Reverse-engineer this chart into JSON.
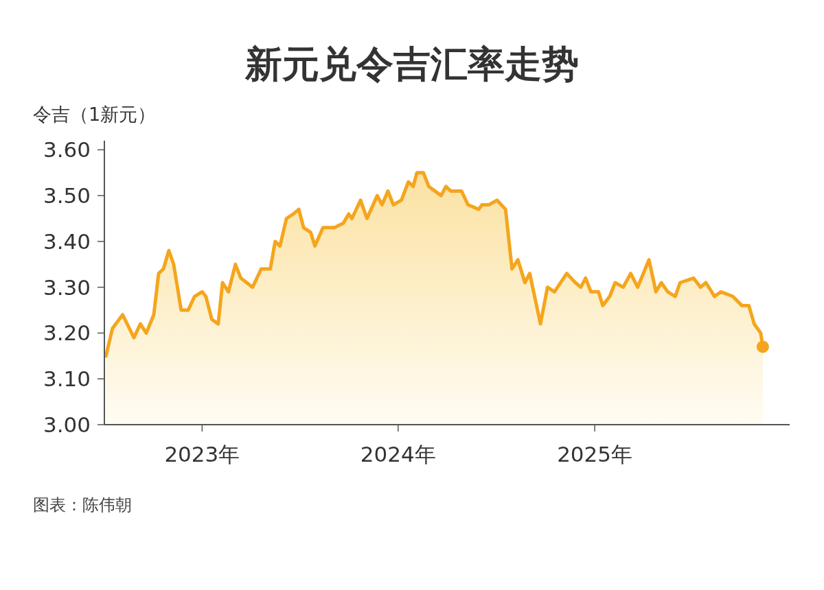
{
  "chart_data": {
    "type": "area",
    "title": "新元兑令吉汇率走势",
    "ylabel": "令吉（1新元）",
    "xlim": [
      "2022-07-03",
      "2025-12-30"
    ],
    "ylim": [
      3.0,
      3.62
    ],
    "xticks": [
      {
        "value": "2023-01-01",
        "label": "2023年"
      },
      {
        "value": "2024-01-01",
        "label": "2024年"
      },
      {
        "value": "2025-01-01",
        "label": "2025年"
      }
    ],
    "yticks": [
      {
        "value": 3.0,
        "label": "3.00"
      },
      {
        "value": 3.1,
        "label": "3.10"
      },
      {
        "value": 3.2,
        "label": "3.20"
      },
      {
        "value": 3.3,
        "label": "3.30"
      },
      {
        "value": 3.4,
        "label": "3.40"
      },
      {
        "value": 3.5,
        "label": "3.50"
      },
      {
        "value": 3.6,
        "label": "3.60"
      }
    ],
    "annotations": [
      "图表：陈伟朝"
    ],
    "series": [
      {
        "color": "#f5a51d",
        "x": [
          "2022-07-06",
          "2022-07-18",
          "2022-08-06",
          "2022-08-27",
          "2022-09-08",
          "2022-09-19",
          "2022-10-03",
          "2022-10-12",
          "2022-10-21",
          "2022-10-31",
          "2022-11-09",
          "2022-11-23",
          "2022-12-06",
          "2022-12-18",
          "2023-01-01",
          "2023-01-08",
          "2023-01-19",
          "2023-01-31",
          "2023-02-08",
          "2023-02-19",
          "2023-03-04",
          "2023-03-14",
          "2023-04-05",
          "2023-04-21",
          "2023-05-08",
          "2023-05-17",
          "2023-05-26",
          "2023-06-07",
          "2023-06-20",
          "2023-06-30",
          "2023-07-09",
          "2023-07-22",
          "2023-07-30",
          "2023-08-14",
          "2023-08-23",
          "2023-09-04",
          "2023-09-21",
          "2023-10-01",
          "2023-10-07",
          "2023-10-23",
          "2023-11-04",
          "2023-11-23",
          "2023-12-02",
          "2023-12-13",
          "2023-12-23",
          "2024-01-07",
          "2024-01-20",
          "2024-01-29",
          "2024-02-05",
          "2024-02-17",
          "2024-02-27",
          "2024-03-21",
          "2024-03-30",
          "2024-04-08",
          "2024-04-28",
          "2024-05-10",
          "2024-05-30",
          "2024-06-05",
          "2024-06-18",
          "2024-07-03",
          "2024-07-19",
          "2024-07-31",
          "2024-08-11",
          "2024-08-24",
          "2024-09-02",
          "2024-09-22",
          "2024-10-05",
          "2024-10-18",
          "2024-11-10",
          "2024-11-26",
          "2024-12-06",
          "2024-12-15",
          "2024-12-25",
          "2025-01-08",
          "2025-01-16",
          "2025-01-29",
          "2025-02-08",
          "2025-02-23",
          "2025-03-09",
          "2025-03-22",
          "2025-04-12",
          "2025-04-25",
          "2025-05-05",
          "2025-05-17",
          "2025-05-31",
          "2025-06-09",
          "2025-07-04",
          "2025-07-17",
          "2025-07-27",
          "2025-08-12",
          "2025-08-24",
          "2025-09-15",
          "2025-10-02",
          "2025-10-15",
          "2025-10-25",
          "2025-11-06",
          "2025-11-10"
        ],
        "values": [
          3.15,
          3.21,
          3.24,
          3.19,
          3.22,
          3.2,
          3.24,
          3.33,
          3.34,
          3.38,
          3.35,
          3.25,
          3.25,
          3.28,
          3.29,
          3.28,
          3.23,
          3.22,
          3.31,
          3.29,
          3.35,
          3.32,
          3.3,
          3.34,
          3.34,
          3.4,
          3.39,
          3.45,
          3.46,
          3.47,
          3.43,
          3.42,
          3.39,
          3.43,
          3.43,
          3.43,
          3.44,
          3.46,
          3.45,
          3.49,
          3.45,
          3.5,
          3.48,
          3.51,
          3.48,
          3.49,
          3.53,
          3.52,
          3.55,
          3.55,
          3.52,
          3.5,
          3.52,
          3.51,
          3.51,
          3.48,
          3.47,
          3.48,
          3.48,
          3.49,
          3.47,
          3.34,
          3.36,
          3.31,
          3.33,
          3.22,
          3.3,
          3.29,
          3.33,
          3.31,
          3.3,
          3.32,
          3.29,
          3.29,
          3.26,
          3.28,
          3.31,
          3.3,
          3.33,
          3.3,
          3.36,
          3.29,
          3.31,
          3.29,
          3.28,
          3.31,
          3.32,
          3.3,
          3.31,
          3.28,
          3.29,
          3.28,
          3.26,
          3.26,
          3.22,
          3.2,
          3.17
        ]
      },
      {
        "type": "scatter",
        "color": "#f5a51d",
        "marker": "circle",
        "x": [
          "2025-11-10"
        ],
        "values": [
          3.17
        ]
      }
    ]
  }
}
